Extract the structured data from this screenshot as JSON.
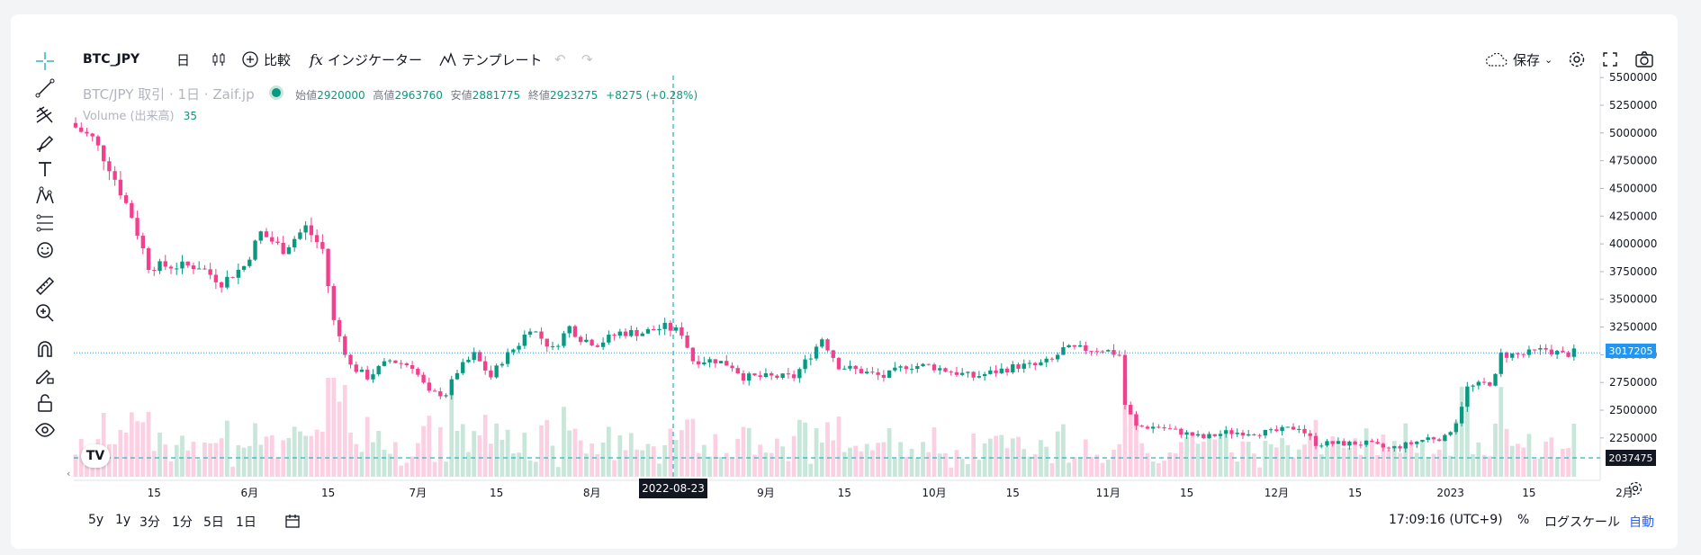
{
  "header": {
    "symbol": "BTC_JPY",
    "interval": "日",
    "compare_label": "比較",
    "indicator_label": "インジケーター",
    "template_label": "テンプレート",
    "save_label": "保存"
  },
  "legend": {
    "title": "BTC/JPY 取引 · 1日 · Zaif.jp",
    "open_label": "始値",
    "open": "2920000",
    "high_label": "高値",
    "high": "2963760",
    "low_label": "安値",
    "low": "2881775",
    "close_label": "終値",
    "close": "2923275",
    "change": "+8275 (+0.28%)",
    "volume_label": "Volume (出来高)",
    "volume_value": "35"
  },
  "crosshair": {
    "date": "2022-08-23",
    "time": "17:09:16 (UTC+9)"
  },
  "bottom_bar": {
    "ranges": [
      "5y",
      "1y",
      "3分",
      "1分",
      "5日",
      "1日"
    ],
    "percent": "%",
    "log_scale": "ログスケール",
    "auto": "自動"
  },
  "price_badges": {
    "last": "3017205",
    "volume_line": "2037475"
  },
  "colors": {
    "up": "#089981",
    "down": "#f23f8e",
    "up_vol": "#c8e6d9",
    "down_vol": "#fbd0e2",
    "crosshair": "#2fb3c6",
    "last_badge": "#2196f3"
  },
  "chart_data": {
    "type": "candlestick",
    "ylim": [
      1900000,
      5550000
    ],
    "y_ticks": [
      5500000,
      5250000,
      5000000,
      4750000,
      4500000,
      4250000,
      4000000,
      3750000,
      3500000,
      3250000,
      3000000,
      2750000,
      2500000,
      2250000
    ],
    "x_ticks": [
      {
        "label": "15",
        "day": 14
      },
      {
        "label": "6月",
        "day": 31
      },
      {
        "label": "15",
        "day": 45
      },
      {
        "label": "7月",
        "day": 61
      },
      {
        "label": "15",
        "day": 75
      },
      {
        "label": "8月",
        "day": 92
      },
      {
        "label": "15",
        "day": 106
      },
      {
        "label": "9月",
        "day": 123
      },
      {
        "label": "15",
        "day": 137
      },
      {
        "label": "10月",
        "day": 153
      },
      {
        "label": "15",
        "day": 167
      },
      {
        "label": "11月",
        "day": 184
      },
      {
        "label": "15",
        "day": 198
      },
      {
        "label": "12月",
        "day": 214
      },
      {
        "label": "15",
        "day": 228
      },
      {
        "label": "2023",
        "day": 245
      },
      {
        "label": "15",
        "day": 259
      },
      {
        "label": "2月",
        "day": 276
      }
    ],
    "closes": [
      [
        0,
        5050000
      ],
      [
        3,
        4950000
      ],
      [
        6,
        4700000
      ],
      [
        10,
        4250000
      ],
      [
        13,
        3800000
      ],
      [
        18,
        3800000
      ],
      [
        22,
        3800000
      ],
      [
        26,
        3650000
      ],
      [
        30,
        3800000
      ],
      [
        33,
        4100000
      ],
      [
        37,
        3950000
      ],
      [
        41,
        4150000
      ],
      [
        44,
        3950000
      ],
      [
        46,
        3300000
      ],
      [
        49,
        2900000
      ],
      [
        52,
        2800000
      ],
      [
        56,
        2950000
      ],
      [
        60,
        2900000
      ],
      [
        63,
        2650000
      ],
      [
        66,
        2650000
      ],
      [
        68,
        2850000
      ],
      [
        71,
        3000000
      ],
      [
        74,
        2800000
      ],
      [
        76,
        2950000
      ],
      [
        79,
        3100000
      ],
      [
        81,
        3250000
      ],
      [
        83,
        3150000
      ],
      [
        85,
        3050000
      ],
      [
        88,
        3250000
      ],
      [
        90,
        3150000
      ],
      [
        93,
        3100000
      ],
      [
        97,
        3200000
      ],
      [
        101,
        3200000
      ],
      [
        105,
        3250000
      ],
      [
        108,
        3200000
      ],
      [
        110,
        2950000
      ],
      [
        114,
        2950000
      ],
      [
        117,
        2900000
      ],
      [
        119,
        2800000
      ],
      [
        124,
        2800000
      ],
      [
        128,
        2800000
      ],
      [
        131,
        3000000
      ],
      [
        133,
        3150000
      ],
      [
        136,
        2900000
      ],
      [
        140,
        2850000
      ],
      [
        144,
        2800000
      ],
      [
        148,
        2900000
      ],
      [
        152,
        2900000
      ],
      [
        156,
        2850000
      ],
      [
        160,
        2800000
      ],
      [
        164,
        2850000
      ],
      [
        168,
        2900000
      ],
      [
        171,
        2900000
      ],
      [
        174,
        2950000
      ],
      [
        176,
        3050000
      ],
      [
        179,
        3050000
      ],
      [
        183,
        3050000
      ],
      [
        186,
        3000000
      ],
      [
        187,
        2550000
      ],
      [
        189,
        2350000
      ],
      [
        193,
        2350000
      ],
      [
        197,
        2300000
      ],
      [
        201,
        2250000
      ],
      [
        205,
        2300000
      ],
      [
        209,
        2300000
      ],
      [
        213,
        2300000
      ],
      [
        218,
        2350000
      ],
      [
        221,
        2200000
      ],
      [
        226,
        2200000
      ],
      [
        230,
        2200000
      ],
      [
        234,
        2150000
      ],
      [
        238,
        2200000
      ],
      [
        241,
        2250000
      ],
      [
        244,
        2250000
      ],
      [
        246,
        2400000
      ],
      [
        248,
        2700000
      ],
      [
        252,
        2750000
      ],
      [
        253,
        2800000
      ],
      [
        254,
        3000000
      ],
      [
        258,
        3000000
      ],
      [
        262,
        3050000
      ],
      [
        265,
        3000000
      ],
      [
        267,
        3020000
      ]
    ]
  }
}
